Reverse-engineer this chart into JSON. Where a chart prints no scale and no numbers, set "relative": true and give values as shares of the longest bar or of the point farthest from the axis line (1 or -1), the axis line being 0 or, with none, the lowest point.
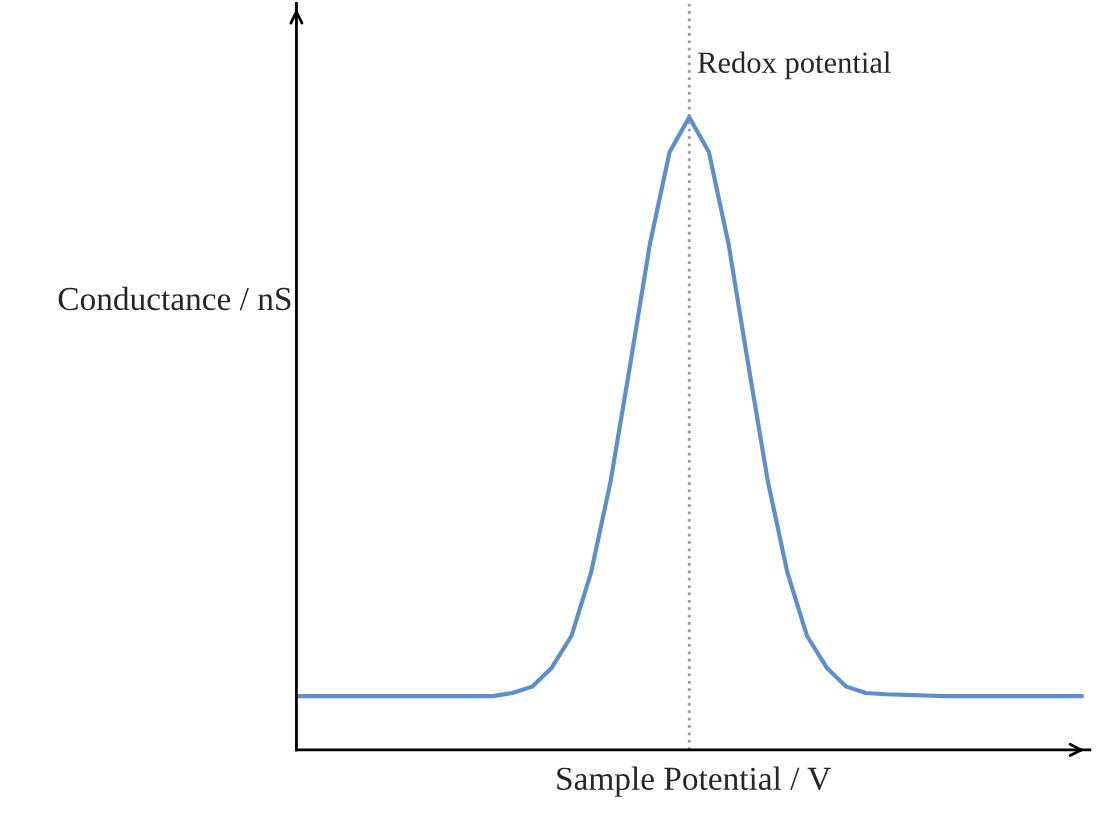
{
  "chart_data": {
    "type": "line",
    "relative": true,
    "xlabel": "Sample Potential / V",
    "ylabel": "Conductance / nS",
    "categories": [
      null,
      null,
      null,
      null,
      null,
      null,
      null,
      null,
      null,
      null,
      null,
      null,
      null,
      null,
      null,
      null,
      null,
      null,
      null,
      null,
      null,
      null,
      null,
      null,
      null,
      null,
      null,
      null,
      null,
      null,
      null,
      null,
      null,
      null,
      null,
      null,
      null,
      null,
      null,
      null,
      null
    ],
    "series": [
      {
        "color": "#5b8fd0",
        "values": [
          0.085,
          0.085,
          0.085,
          0.085,
          0.085,
          0.085,
          0.085,
          0.085,
          0.085,
          0.085,
          0.085,
          0.09,
          0.1,
          0.13,
          0.18,
          0.28,
          0.425,
          0.61,
          0.8,
          0.945,
          1.0,
          0.945,
          0.8,
          0.61,
          0.425,
          0.28,
          0.18,
          0.13,
          0.1,
          0.09,
          0.088,
          0.087,
          0.086,
          0.085,
          0.085,
          0.085,
          0.085,
          0.085,
          0.085,
          0.085,
          0.085
        ]
      }
    ],
    "annotations": [
      "Redox potential"
    ],
    "legend": false,
    "marker": "none",
    "line_style": "solid"
  }
}
